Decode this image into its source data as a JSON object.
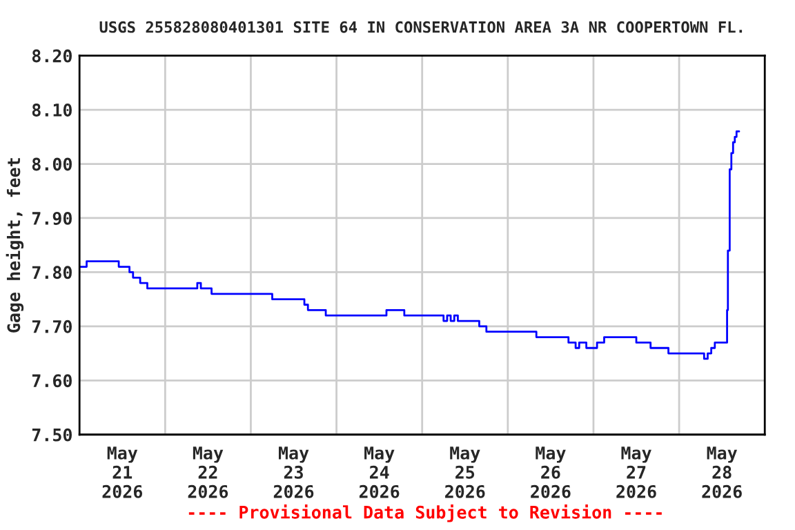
{
  "chart_data": {
    "type": "step",
    "title": "USGS 255828080401301 SITE 64 IN CONSERVATION AREA 3A NR COOPERTOWN FL.",
    "ylabel": "Gage height, feet",
    "annotations": [
      "---- Provisional Data Subject to Revision ----"
    ],
    "x": [
      "2026-05-21T00:00",
      "2026-05-21T02:00",
      "2026-05-21T11:00",
      "2026-05-21T14:00",
      "2026-05-21T15:00",
      "2026-05-21T17:00",
      "2026-05-21T19:00",
      "2026-05-22T09:00",
      "2026-05-22T10:00",
      "2026-05-22T13:00",
      "2026-05-23T06:00",
      "2026-05-23T15:00",
      "2026-05-23T16:00",
      "2026-05-23T21:00",
      "2026-05-24T14:00",
      "2026-05-24T19:00",
      "2026-05-25T06:00",
      "2026-05-25T07:00",
      "2026-05-25T08:00",
      "2026-05-25T09:00",
      "2026-05-25T10:00",
      "2026-05-25T16:00",
      "2026-05-25T18:00",
      "2026-05-26T08:00",
      "2026-05-26T17:00",
      "2026-05-26T19:00",
      "2026-05-26T20:00",
      "2026-05-26T22:00",
      "2026-05-27T01:00",
      "2026-05-27T03:00",
      "2026-05-27T12:00",
      "2026-05-27T16:00",
      "2026-05-27T21:00",
      "2026-05-28T07:00",
      "2026-05-28T08:00",
      "2026-05-28T09:00",
      "2026-05-28T10:00",
      "2026-05-28T13:26",
      "2026-05-28T13:40",
      "2026-05-28T14:10",
      "2026-05-28T14:38",
      "2026-05-28T15:07",
      "2026-05-28T15:36",
      "2026-05-28T16:05",
      "2026-05-28T16:48"
    ],
    "series": [
      {
        "color": "#0000ff",
        "values": [
          7.81,
          7.82,
          7.81,
          7.8,
          7.79,
          7.78,
          7.77,
          7.78,
          7.77,
          7.76,
          7.75,
          7.74,
          7.73,
          7.72,
          7.73,
          7.72,
          7.71,
          7.72,
          7.71,
          7.72,
          7.71,
          7.7,
          7.69,
          7.68,
          7.67,
          7.66,
          7.67,
          7.66,
          7.67,
          7.68,
          7.67,
          7.66,
          7.65,
          7.64,
          7.65,
          7.66,
          7.67,
          7.73,
          7.84,
          7.99,
          8.02,
          8.04,
          8.05,
          8.06,
          8.06
        ]
      }
    ],
    "xlim": [
      "2026-05-21T00:00",
      "2026-05-29T00:00"
    ],
    "xticks": [
      {
        "value": "2026-05-21T12:00",
        "label": "May\n21\n2026"
      },
      {
        "value": "2026-05-22T12:00",
        "label": "May\n22\n2026"
      },
      {
        "value": "2026-05-23T12:00",
        "label": "May\n23\n2026"
      },
      {
        "value": "2026-05-24T12:00",
        "label": "May\n24\n2026"
      },
      {
        "value": "2026-05-25T12:00",
        "label": "May\n25\n2026"
      },
      {
        "value": "2026-05-26T12:00",
        "label": "May\n26\n2026"
      },
      {
        "value": "2026-05-27T12:00",
        "label": "May\n27\n2026"
      },
      {
        "value": "2026-05-28T12:00",
        "label": "May\n28\n2026"
      },
      {
        "value": "2026-05-22T00:00",
        "label": null
      },
      {
        "value": "2026-05-23T00:00",
        "label": null
      },
      {
        "value": "2026-05-24T00:00",
        "label": null
      },
      {
        "value": "2026-05-25T00:00",
        "label": null
      },
      {
        "value": "2026-05-26T00:00",
        "label": null
      },
      {
        "value": "2026-05-27T00:00",
        "label": null
      },
      {
        "value": "2026-05-28T00:00",
        "label": null
      }
    ],
    "ylim": [
      7.5,
      8.2
    ],
    "yticks": [
      {
        "value": 7.5,
        "label": "7.50"
      },
      {
        "value": 7.6,
        "label": "7.60"
      },
      {
        "value": 7.7,
        "label": "7.70"
      },
      {
        "value": 7.8,
        "label": "7.80"
      },
      {
        "value": 7.9,
        "label": "7.90"
      },
      {
        "value": 8.0,
        "label": "8.00"
      },
      {
        "value": 8.1,
        "label": "8.10"
      },
      {
        "value": 8.2,
        "label": "8.20"
      }
    ],
    "grid": true,
    "marker": "none",
    "line_style": "solid"
  }
}
